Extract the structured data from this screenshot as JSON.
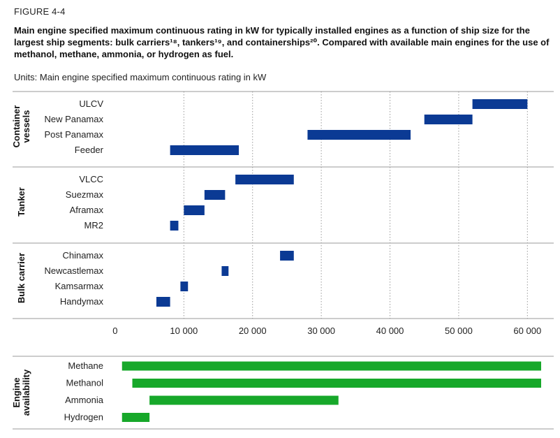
{
  "figure": {
    "label": "FIGURE 4-4",
    "title": "Main engine specified maximum continuous rating in kW for typically installed engines as a function of ship size for the largest ship segments: bulk carriers¹⁸, tankers¹⁹, and containerships²⁰. Compared with available main engines for the use of methanol, methane, ammonia, or hydrogen as fuel.",
    "units_prefix": "Units:",
    "units_text": "Main engine specified maximum continuous rating in kW"
  },
  "chart_data": [
    {
      "type": "bar",
      "orientation": "horizontal-range",
      "title": "",
      "xlabel": "",
      "ylabel": "",
      "xlim": [
        -500,
        62000
      ],
      "xticks": [
        0,
        10000,
        20000,
        30000,
        40000,
        50000,
        60000
      ],
      "xtick_labels": [
        "0",
        "10 000",
        "20 000",
        "30 000",
        "40 000",
        "50 000",
        "60 000"
      ],
      "grid": "vertical dotted",
      "color": "#0b3a94",
      "groups": [
        {
          "name": "Container vessels",
          "label_lines": [
            "Container",
            "vessels"
          ],
          "items": [
            {
              "name": "ULCV",
              "range": [
                52000,
                60000
              ]
            },
            {
              "name": "New Panamax",
              "range": [
                45000,
                52000
              ]
            },
            {
              "name": "Post Panamax",
              "range": [
                28000,
                43000
              ]
            },
            {
              "name": "Feeder",
              "range": [
                8000,
                18000
              ]
            }
          ]
        },
        {
          "name": "Tanker",
          "label_lines": [
            "Tanker"
          ],
          "items": [
            {
              "name": "VLCC",
              "range": [
                17500,
                26000
              ]
            },
            {
              "name": "Suezmax",
              "range": [
                13000,
                16000
              ]
            },
            {
              "name": "Aframax",
              "range": [
                10000,
                13000
              ]
            },
            {
              "name": "MR2",
              "range": [
                8000,
                9200
              ]
            }
          ]
        },
        {
          "name": "Bulk carrier",
          "label_lines": [
            "Bulk carrier"
          ],
          "items": [
            {
              "name": "Chinamax",
              "range": [
                24000,
                26000
              ]
            },
            {
              "name": "Newcastlemax",
              "range": [
                15500,
                16500
              ]
            },
            {
              "name": "Kamsarmax",
              "range": [
                9500,
                10600
              ]
            },
            {
              "name": "Handymax",
              "range": [
                6000,
                8000
              ]
            }
          ]
        }
      ]
    },
    {
      "type": "bar",
      "orientation": "horizontal-range",
      "title": "",
      "xlabel": "",
      "ylabel": "",
      "xlim": [
        -500,
        62000
      ],
      "color": "#17a82a",
      "groups": [
        {
          "name": "Engine availability",
          "label_lines": [
            "Engine",
            "availability"
          ],
          "items": [
            {
              "name": "Methane",
              "range": [
                1000,
                62000
              ]
            },
            {
              "name": "Methanol",
              "range": [
                2500,
                62000
              ]
            },
            {
              "name": "Ammonia",
              "range": [
                5000,
                32500
              ]
            },
            {
              "name": "Hydrogen",
              "range": [
                1000,
                5000
              ]
            }
          ]
        }
      ]
    }
  ]
}
